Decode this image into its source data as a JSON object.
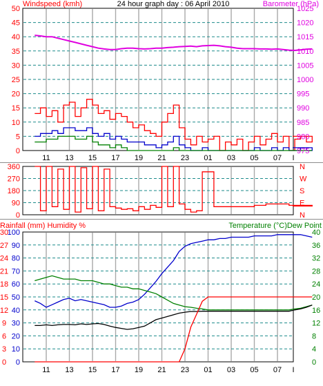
{
  "window": {
    "title": "24 hour graph day : 06 April 2010"
  },
  "colors": {
    "wind": "#ff0000",
    "gust": "#ff0000",
    "avg_wind": "#0000cc",
    "low_wind": "#008000",
    "barometer": "#e000e0",
    "direction": "#ff0000",
    "rain": "#ff0000",
    "humidity": "#0000cc",
    "temperature": "#008000",
    "dewpoint": "#000000",
    "grid": "#1a8a8a",
    "axis_red": "#ff0000",
    "axis_magenta": "#e000e0",
    "axis_blue": "#0000cc",
    "axis_green": "#008000"
  },
  "x_ticks": [
    "11",
    "13",
    "15",
    "17",
    "19",
    "21",
    "23",
    "01",
    "03",
    "05",
    "07",
    "I"
  ],
  "chart_data": [
    {
      "type": "line",
      "title": "24 hour graph day : 06 April 2010",
      "ylabel": "Windspeed (kmh)",
      "y2label": "Barometer (hPa)",
      "ylim": [
        0,
        50
      ],
      "y2lim": [
        975,
        1025
      ],
      "yticks": [
        "0",
        "5",
        "10",
        "15",
        "20",
        "25",
        "30",
        "35",
        "40",
        "45",
        "50"
      ],
      "y2ticks": [
        "975",
        "980",
        "985",
        "990",
        "995",
        "1000",
        "1005",
        "1010",
        "1015",
        "1020",
        "1025"
      ],
      "x_hours": [
        10,
        10.5,
        11,
        11.5,
        12,
        12.5,
        13,
        13.5,
        14,
        14.5,
        15,
        15.5,
        16,
        16.5,
        17,
        17.5,
        18,
        18.5,
        19,
        19.5,
        20,
        20.5,
        21,
        21.5,
        22,
        22.5,
        23,
        23.5,
        24,
        24.5,
        25,
        25.5,
        26,
        26.5,
        27,
        27.5,
        28,
        28.5,
        29,
        29.5,
        30,
        30.5,
        31,
        31.5,
        32,
        32.5,
        33,
        33.5,
        34
      ],
      "series": [
        {
          "key": "gust",
          "values": [
            13,
            15,
            12,
            14,
            10,
            16,
            17,
            12,
            15,
            18,
            16,
            13,
            14,
            11,
            13,
            12,
            10,
            8,
            9,
            7,
            6,
            5,
            10,
            13,
            16,
            8,
            4,
            2,
            5,
            3,
            4,
            5,
            0,
            3,
            2,
            4,
            0,
            3,
            5,
            2,
            4,
            6,
            3,
            5,
            0,
            4,
            5,
            3,
            5
          ]
        },
        {
          "key": "avg_wind",
          "values": [
            5,
            6,
            6,
            7,
            6,
            8,
            8,
            7,
            7,
            8,
            6,
            5,
            6,
            4,
            5,
            4,
            3,
            3,
            3,
            2,
            2,
            1,
            2,
            3,
            5,
            2,
            1,
            0,
            0,
            1,
            0,
            0,
            0,
            0,
            0,
            0,
            0,
            0,
            1,
            0,
            0,
            1,
            0,
            1,
            0,
            0,
            1,
            0,
            1
          ]
        },
        {
          "key": "low_wind",
          "values": [
            3,
            3,
            4,
            4,
            5,
            5,
            5,
            4,
            4,
            5,
            3,
            2,
            2,
            1,
            2,
            1,
            0,
            0,
            0,
            0,
            0,
            0,
            0,
            0,
            1,
            0,
            0,
            0,
            0,
            0,
            0,
            0,
            0,
            0,
            0,
            0,
            0,
            0,
            0,
            0,
            0,
            0,
            0,
            0,
            0,
            0,
            0,
            0,
            0
          ]
        },
        {
          "key": "barometer",
          "values": [
            1015.5,
            1015.3,
            1015.0,
            1015.0,
            1014.5,
            1014.0,
            1013.5,
            1013.0,
            1012.5,
            1012.0,
            1011.5,
            1011.0,
            1010.7,
            1010.5,
            1010.5,
            1010.8,
            1011.0,
            1011.0,
            1010.8,
            1010.7,
            1010.8,
            1011.0,
            1011.0,
            1011.2,
            1011.3,
            1011.5,
            1011.6,
            1011.7,
            1011.5,
            1011.8,
            1011.9,
            1012.0,
            1011.8,
            1011.5,
            1011.3,
            1011.0,
            1010.8,
            1010.8,
            1010.8,
            1010.7,
            1010.7,
            1010.6,
            1010.7,
            1010.5,
            1010.3,
            1010.2,
            1010.4,
            1010.6,
            1010.7
          ]
        }
      ]
    },
    {
      "type": "line",
      "ylim": [
        0,
        360
      ],
      "yticks": [
        "0",
        "90",
        "180",
        "270",
        "360"
      ],
      "y2ticks": [
        "N",
        "E",
        "S",
        "W",
        "N"
      ],
      "x_hours": [
        10,
        10.5,
        11,
        11.5,
        12,
        12.5,
        13,
        13.5,
        14,
        14.5,
        15,
        15.5,
        16,
        16.5,
        17,
        17.5,
        18,
        18.5,
        19,
        19.5,
        20,
        20.5,
        21,
        21.5,
        22,
        22.5,
        23,
        23.5,
        24,
        24.5,
        25,
        25.5,
        26,
        26.5,
        27,
        27.5,
        28,
        28.5,
        29,
        29.5,
        30,
        30.5,
        31,
        31.5,
        32,
        32.5,
        33,
        33.5,
        34
      ],
      "series": [
        {
          "key": "direction",
          "values": [
            360,
            30,
            360,
            60,
            340,
            40,
            360,
            20,
            350,
            45,
            360,
            30,
            340,
            60,
            50,
            40,
            45,
            30,
            60,
            40,
            70,
            55,
            360,
            60,
            360,
            80,
            40,
            20,
            30,
            320,
            320,
            60,
            60,
            60,
            60,
            60,
            60,
            60,
            70,
            70,
            80,
            80,
            80,
            80,
            70,
            70,
            70,
            70,
            65
          ]
        }
      ]
    },
    {
      "type": "line",
      "ylabel": "Rainfall (mm)  Humidity %",
      "y2label": "Temperature (°C)Dew Point",
      "ylim": [
        0,
        100
      ],
      "y2lim": [
        0,
        40
      ],
      "yticks_rain": [
        "0",
        "3",
        "6",
        "9",
        "12",
        "15",
        "18",
        "21",
        "24",
        "27",
        "30"
      ],
      "yticks_humidity": [
        "0",
        "10",
        "20",
        "30",
        "40",
        "50",
        "60",
        "70",
        "80",
        "90",
        "100"
      ],
      "y2ticks": [
        "0",
        "4",
        "8",
        "12",
        "16",
        "20",
        "24",
        "28",
        "32",
        "36",
        "40"
      ],
      "x_hours": [
        10,
        10.5,
        11,
        11.5,
        12,
        12.5,
        13,
        13.5,
        14,
        14.5,
        15,
        15.5,
        16,
        16.5,
        17,
        17.5,
        18,
        18.5,
        19,
        19.5,
        20,
        20.5,
        21,
        21.5,
        22,
        22.5,
        23,
        23.5,
        24,
        24.5,
        25,
        25.5,
        26,
        26.5,
        27,
        27.5,
        28,
        28.5,
        29,
        29.5,
        30,
        30.5,
        31,
        31.5,
        32,
        32.5,
        33,
        33.5,
        34
      ],
      "series": [
        {
          "key": "humidity",
          "values": [
            47,
            45,
            42,
            44,
            46,
            48,
            49,
            47,
            48,
            47,
            46,
            45,
            44,
            42,
            42,
            43,
            45,
            46,
            48,
            52,
            57,
            62,
            68,
            73,
            78,
            85,
            89,
            91,
            92,
            93,
            94,
            94,
            95,
            95,
            96,
            96,
            96,
            96,
            97,
            97,
            97,
            97,
            98,
            98,
            98,
            98,
            98,
            97,
            96
          ]
        },
        {
          "key": "temperature",
          "values": [
            25.0,
            25.5,
            26.0,
            26.5,
            26.0,
            25.5,
            25.5,
            25.5,
            25.0,
            25.0,
            25.0,
            24.5,
            24.0,
            24.0,
            23.5,
            23.0,
            23.0,
            22.5,
            22.5,
            22.0,
            21.5,
            21.0,
            20.0,
            19.0,
            18.0,
            17.5,
            17.0,
            16.8,
            16.5,
            16.3,
            16.0,
            16.0,
            16.0,
            16.0,
            16.0,
            16.0,
            16.0,
            16.0,
            16.0,
            16.0,
            16.0,
            16.0,
            16.0,
            16.0,
            16.0,
            16.3,
            16.5,
            17.0,
            17.5
          ]
        },
        {
          "key": "dewpoint",
          "values": [
            11.2,
            11.2,
            11.4,
            11.2,
            11.4,
            11.5,
            11.5,
            11.4,
            11.7,
            11.5,
            11.7,
            11.8,
            11.5,
            11.0,
            10.6,
            10.3,
            10.0,
            10.2,
            10.6,
            11.0,
            12.0,
            13.0,
            13.5,
            14.0,
            14.5,
            15.0,
            15.3,
            15.5,
            15.5,
            15.6,
            15.6,
            15.6,
            15.6,
            15.6,
            15.6,
            15.6,
            15.6,
            15.6,
            15.6,
            15.6,
            15.6,
            15.6,
            15.6,
            15.6,
            15.6,
            16.0,
            16.3,
            16.8,
            17.5
          ]
        },
        {
          "key": "rain",
          "values": [
            0,
            0,
            0,
            0,
            0,
            0,
            0,
            0,
            0,
            0,
            0,
            0,
            0,
            0,
            0,
            0,
            0,
            0,
            0,
            0,
            0,
            0,
            0,
            0,
            0,
            0,
            3,
            8,
            11,
            14,
            15,
            15,
            15,
            15,
            15,
            15,
            15,
            15,
            15,
            15,
            15,
            15,
            15,
            15,
            15,
            15,
            15,
            15,
            15
          ]
        }
      ]
    }
  ]
}
